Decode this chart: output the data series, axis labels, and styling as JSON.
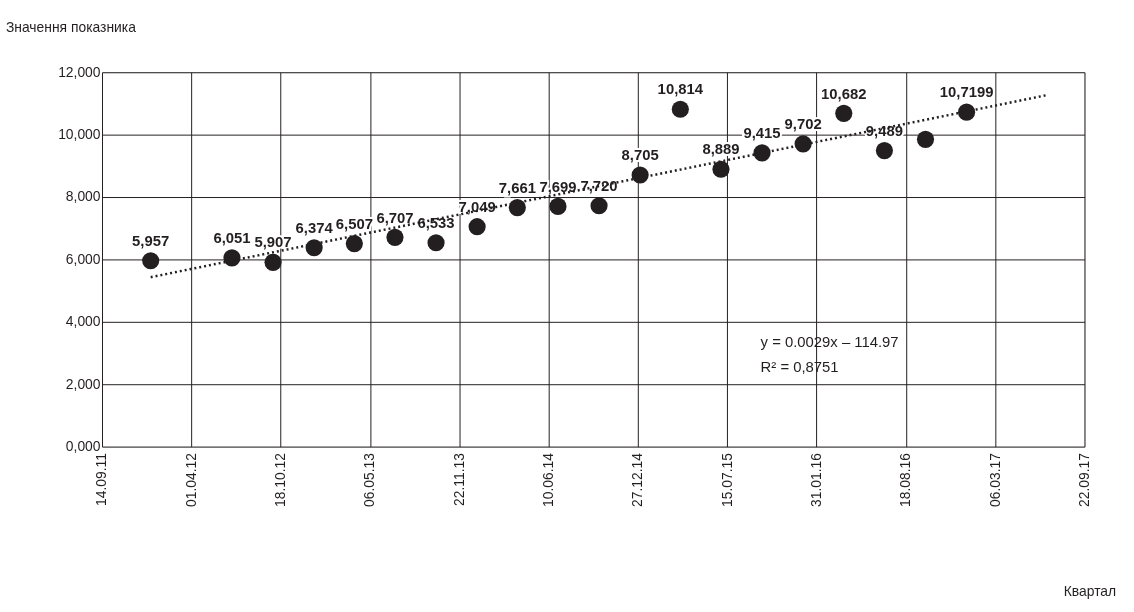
{
  "chart_data": {
    "type": "scatter",
    "ylabel": "Значення показника",
    "x": [
      "2012-01-01",
      "2012-07-01",
      "2012-10-01",
      "2013-01-01",
      "2013-04-01",
      "2013-07-01",
      "2013-10-01",
      "2014-01-01",
      "2014-04-01",
      "2014-07-01",
      "2014-10-01",
      "2015-01-01",
      "2015-04-01",
      "2015-07-01",
      "2015-10-01",
      "2016-01-01",
      "2016-04-01",
      "2016-07-01",
      "2016-10-01",
      "2017-01-01"
    ],
    "series": [
      {
        "type": "scatter",
        "color": "#231f20",
        "marker": "circle",
        "values": [
          5.957,
          6.051,
          5.907,
          6.374,
          6.507,
          6.707,
          6.533,
          7.049,
          7.661,
          7.699,
          7.72,
          8.705,
          10.814,
          8.889,
          9.415,
          9.702,
          10.682,
          9.489,
          9.85,
          10.7199
        ],
        "value_labels": [
          "5,957",
          "6,051",
          "5,907",
          "6,374",
          "6,507",
          "6,707",
          "6,533",
          "7,049",
          "7,661",
          "7,699",
          "7,720",
          "8,705",
          "10,814",
          "8,889",
          "9,415",
          "9,702",
          "10,682",
          "9,489",
          null,
          "10,7199"
        ]
      },
      {
        "type": "line",
        "color": "#231f20",
        "line_style": "dotted",
        "x": [
          "2012-01-01",
          "2017-07-01"
        ],
        "values": [
          5.43,
          11.27
        ]
      }
    ],
    "xlim": [
      "2011-09-14",
      "2017-09-22"
    ],
    "xticks": [
      {
        "value": "2011-09-14",
        "label": "14.09.11"
      },
      {
        "value": "2012-04-01",
        "label": "01.04.12"
      },
      {
        "value": "2012-10-18",
        "label": "18.10.12"
      },
      {
        "value": "2013-05-06",
        "label": "06.05.13"
      },
      {
        "value": "2013-11-22",
        "label": "22.11.13"
      },
      {
        "value": "2014-06-10",
        "label": "10.06.14"
      },
      {
        "value": "2014-12-27",
        "label": "27.12.14"
      },
      {
        "value": "2015-07-15",
        "label": "15.07.15"
      },
      {
        "value": "2016-01-31",
        "label": "31.01.16"
      },
      {
        "value": "2016-08-18",
        "label": "18.08.16"
      },
      {
        "value": "2017-03-06",
        "label": "06.03.17"
      },
      {
        "value": "2017-09-22",
        "label": "22.09.17"
      }
    ],
    "ylim": [
      0,
      12
    ],
    "yticks": [
      {
        "value": 0,
        "label": "0,000"
      },
      {
        "value": 2,
        "label": "2,000"
      },
      {
        "value": 4,
        "label": "4,000"
      },
      {
        "value": 6,
        "label": "6,000"
      },
      {
        "value": 8,
        "label": "8,000"
      },
      {
        "value": 10,
        "label": "10,000"
      },
      {
        "value": 12,
        "label": "12,000"
      }
    ],
    "grid": true,
    "annotations": [
      "y = 0.0029x – 114.97",
      "R² = 0,8751",
      "Квартал"
    ]
  }
}
